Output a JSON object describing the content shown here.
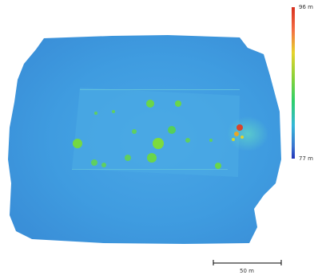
{
  "map": {
    "type": "elevation-model",
    "colors": {
      "low": "#2a6fc9",
      "base": "#3f9ee0",
      "mid": "#36d26a",
      "high_mid": "#d9e23a",
      "high": "#d9442a"
    }
  },
  "legend": {
    "max_label": "96 m",
    "min_label": "77 m",
    "max_value": 96,
    "min_value": 77,
    "unit": "m"
  },
  "scale_bar": {
    "label": "50 m",
    "length_m": 50
  }
}
